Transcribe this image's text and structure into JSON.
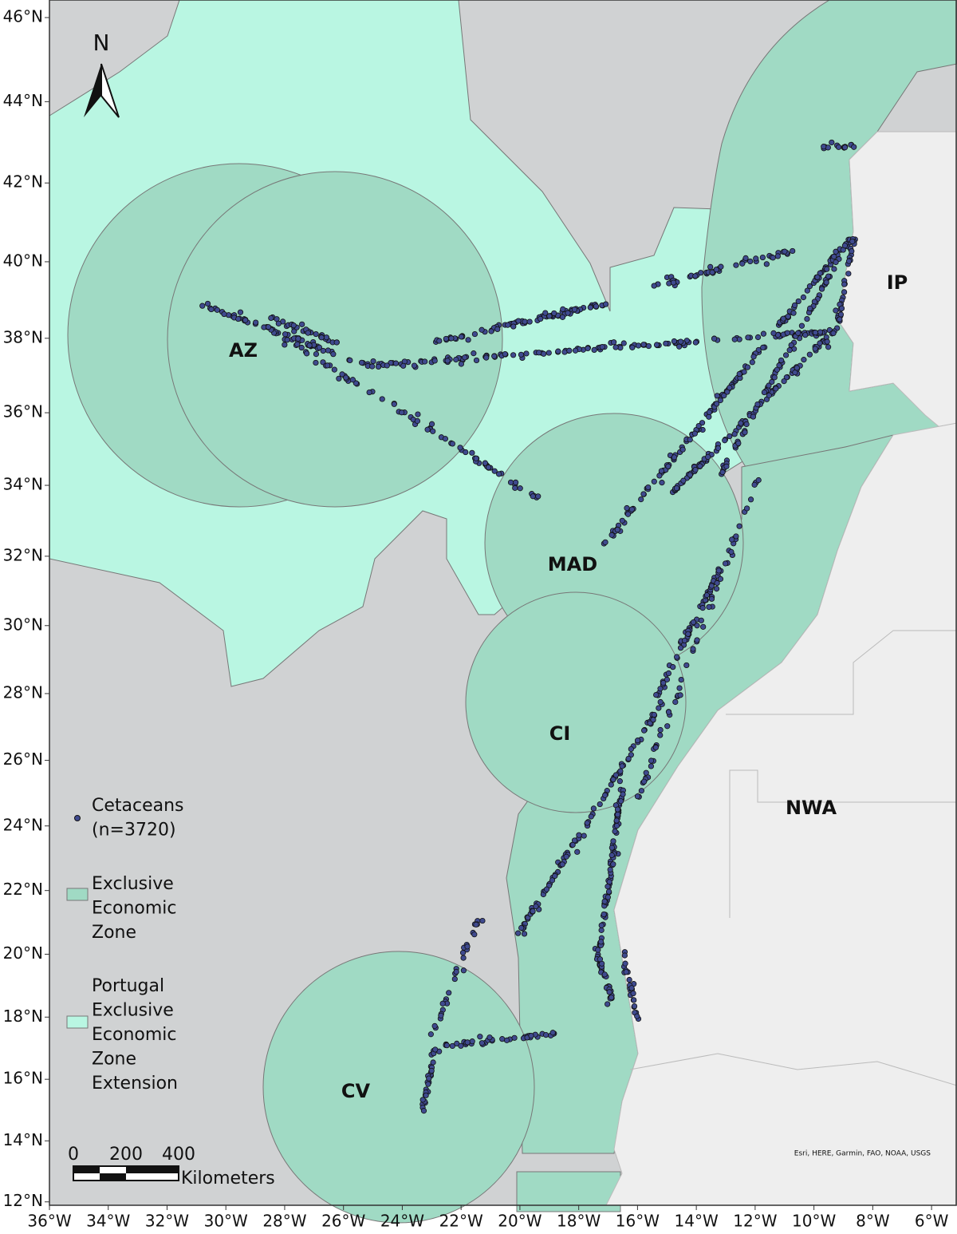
{
  "map": {
    "north_label": "N",
    "regions": [
      {
        "label": "AZ"
      },
      {
        "label": "IP"
      },
      {
        "label": "MAD"
      },
      {
        "label": "CI"
      },
      {
        "label": "NWA"
      },
      {
        "label": "CV"
      }
    ],
    "lat_ticks": [
      {
        "value": 46,
        "label": "46°N"
      },
      {
        "value": 44,
        "label": "44°N"
      },
      {
        "value": 42,
        "label": "42°N"
      },
      {
        "value": 40,
        "label": "40°N"
      },
      {
        "value": 38,
        "label": "38°N"
      },
      {
        "value": 36,
        "label": "36°N"
      },
      {
        "value": 34,
        "label": "34°N"
      },
      {
        "value": 32,
        "label": "32°N"
      },
      {
        "value": 30,
        "label": "30°N"
      },
      {
        "value": 28,
        "label": "28°N"
      },
      {
        "value": 26,
        "label": "26°N"
      },
      {
        "value": 24,
        "label": "24°N"
      },
      {
        "value": 22,
        "label": "22°N"
      },
      {
        "value": 20,
        "label": "20°N"
      },
      {
        "value": 18,
        "label": "18°N"
      },
      {
        "value": 16,
        "label": "16°N"
      },
      {
        "value": 14,
        "label": "14°N"
      },
      {
        "value": 12,
        "label": "12°N"
      }
    ],
    "lon_ticks": [
      {
        "value": -36,
        "label": "36°W"
      },
      {
        "value": -34,
        "label": "34°W"
      },
      {
        "value": -32,
        "label": "32°W"
      },
      {
        "value": -30,
        "label": "30°W"
      },
      {
        "value": -28,
        "label": "28°W"
      },
      {
        "value": -26,
        "label": "26°W"
      },
      {
        "value": -24,
        "label": "24°W"
      },
      {
        "value": -22,
        "label": "22°W"
      },
      {
        "value": -20,
        "label": "20°W"
      },
      {
        "value": -18,
        "label": "18°W"
      },
      {
        "value": -16,
        "label": "16°W"
      },
      {
        "value": -14,
        "label": "14°W"
      },
      {
        "value": -12,
        "label": "12°W"
      },
      {
        "value": -10,
        "label": "10°W"
      },
      {
        "value": -8,
        "label": "8°W"
      },
      {
        "value": -6,
        "label": "6°W"
      }
    ]
  },
  "legend": {
    "items": [
      {
        "lines": [
          "Cetaceans",
          "(n=3720)"
        ]
      },
      {
        "lines": [
          "Exclusive",
          "Economic",
          "Zone"
        ]
      },
      {
        "lines": [
          "Portugal",
          "Exclusive",
          "Economic",
          "Zone",
          "Extension"
        ]
      }
    ]
  },
  "scale_bar": {
    "labels": [
      0,
      200,
      400
    ],
    "unit": "Kilometers"
  },
  "attribution": "Esri, HERE, Garmin, FAO, NOAA, USGS"
}
